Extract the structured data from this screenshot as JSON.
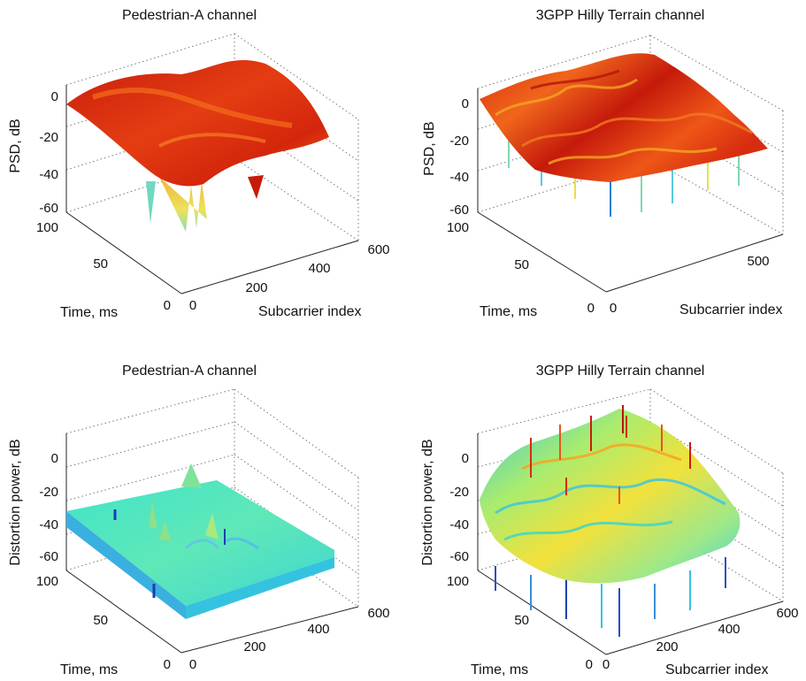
{
  "figure": {
    "background": "#ffffff"
  },
  "chart_data": [
    {
      "type": "surface3d",
      "title": "Pedestrian-A channel",
      "zlabel": "PSD, dB",
      "ylabel": "Time, ms",
      "xlabel": "Subcarrier index",
      "zticks": [
        "0",
        "-20",
        "-40",
        "-60"
      ],
      "yticks": [
        "100",
        "50",
        "0"
      ],
      "xticks": [
        "0",
        "200",
        "400",
        "600"
      ],
      "zlim": [
        -60,
        10
      ],
      "ylim": [
        0,
        100
      ],
      "xlim": [
        0,
        600
      ],
      "colormap": "jet",
      "color_range_shown": "red-orange-yellow",
      "grid": "on",
      "surface_level_db": -5,
      "deep_fades_db": -55
    },
    {
      "type": "surface3d",
      "title": "3GPP Hilly Terrain channel",
      "zlabel": "PSD, dB",
      "ylabel": "Time, ms",
      "xlabel": "Subcarrier index",
      "zticks": [
        "0",
        "-20",
        "-40",
        "-60"
      ],
      "yticks": [
        "100",
        "50",
        "0"
      ],
      "xticks": [
        "0",
        "500"
      ],
      "zlim": [
        -60,
        10
      ],
      "ylim": [
        0,
        100
      ],
      "xlim": [
        0,
        600
      ],
      "colormap": "jet",
      "color_range_shown": "red-orange-yellow",
      "grid": "on",
      "surface_level_db": -10,
      "deep_fades_db": -60
    },
    {
      "type": "surface3d",
      "title": "Pedestrian-A channel",
      "zlabel": "Distortion power, dB",
      "ylabel": "Time, ms",
      "xlabel": "",
      "zticks": [
        "0",
        "-20",
        "-40",
        "-60"
      ],
      "yticks": [
        "100",
        "50",
        "0"
      ],
      "xticks": [
        "0",
        "200",
        "400",
        "600"
      ],
      "zlim": [
        -70,
        10
      ],
      "ylim": [
        0,
        100
      ],
      "xlim": [
        0,
        600
      ],
      "colormap": "jet",
      "color_range_shown": "cyan-green",
      "grid": "on",
      "surface_level_db": -45,
      "peaks_db": -25
    },
    {
      "type": "surface3d",
      "title": "3GPP Hilly Terrain channel",
      "zlabel": "Distortion power, dB",
      "ylabel": "Time, ms",
      "xlabel": "Subcarrier index",
      "zticks": [
        "0",
        "-20",
        "-40",
        "-60"
      ],
      "yticks": [
        "100",
        "50",
        "0"
      ],
      "xticks": [
        "0",
        "200",
        "400",
        "600"
      ],
      "zlim": [
        -70,
        10
      ],
      "ylim": [
        0,
        100
      ],
      "xlim": [
        0,
        600
      ],
      "colormap": "jet",
      "color_range_shown": "cyan-yellow-red",
      "grid": "on",
      "surface_level_db": -40,
      "peaks_db": 5
    }
  ]
}
